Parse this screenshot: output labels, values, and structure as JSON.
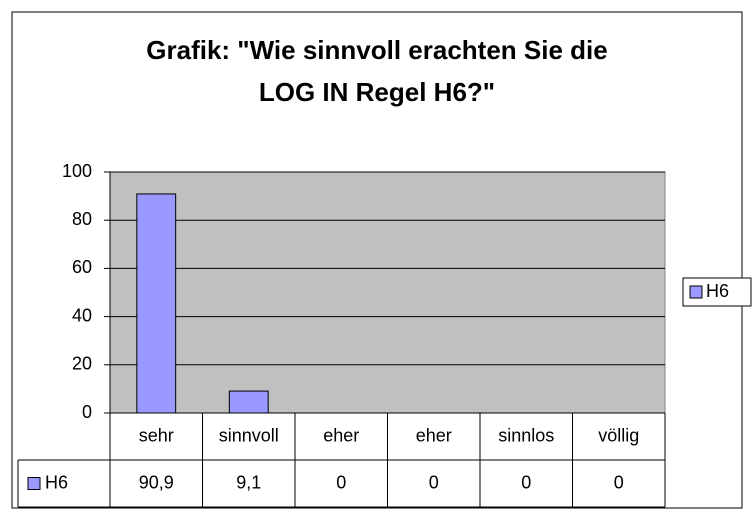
{
  "chart_data": {
    "type": "bar",
    "title": [
      "Grafik:  \"Wie sinnvoll erachten Sie die",
      "LOG IN Regel H6?\""
    ],
    "categories": [
      "sehr",
      "sinnvoll",
      "eher",
      "eher",
      "sinnlos",
      "völlig"
    ],
    "series": [
      {
        "name": "H6",
        "color": "#9999ff",
        "values": [
          90.9,
          9.1,
          0,
          0,
          0,
          0
        ],
        "value_labels": [
          "90,9",
          "9,1",
          "0",
          "0",
          "0",
          "0"
        ]
      }
    ],
    "ylim": [
      0,
      100
    ],
    "yticks": [
      0,
      20,
      40,
      60,
      80,
      100
    ],
    "grid": true,
    "legend": "right"
  }
}
